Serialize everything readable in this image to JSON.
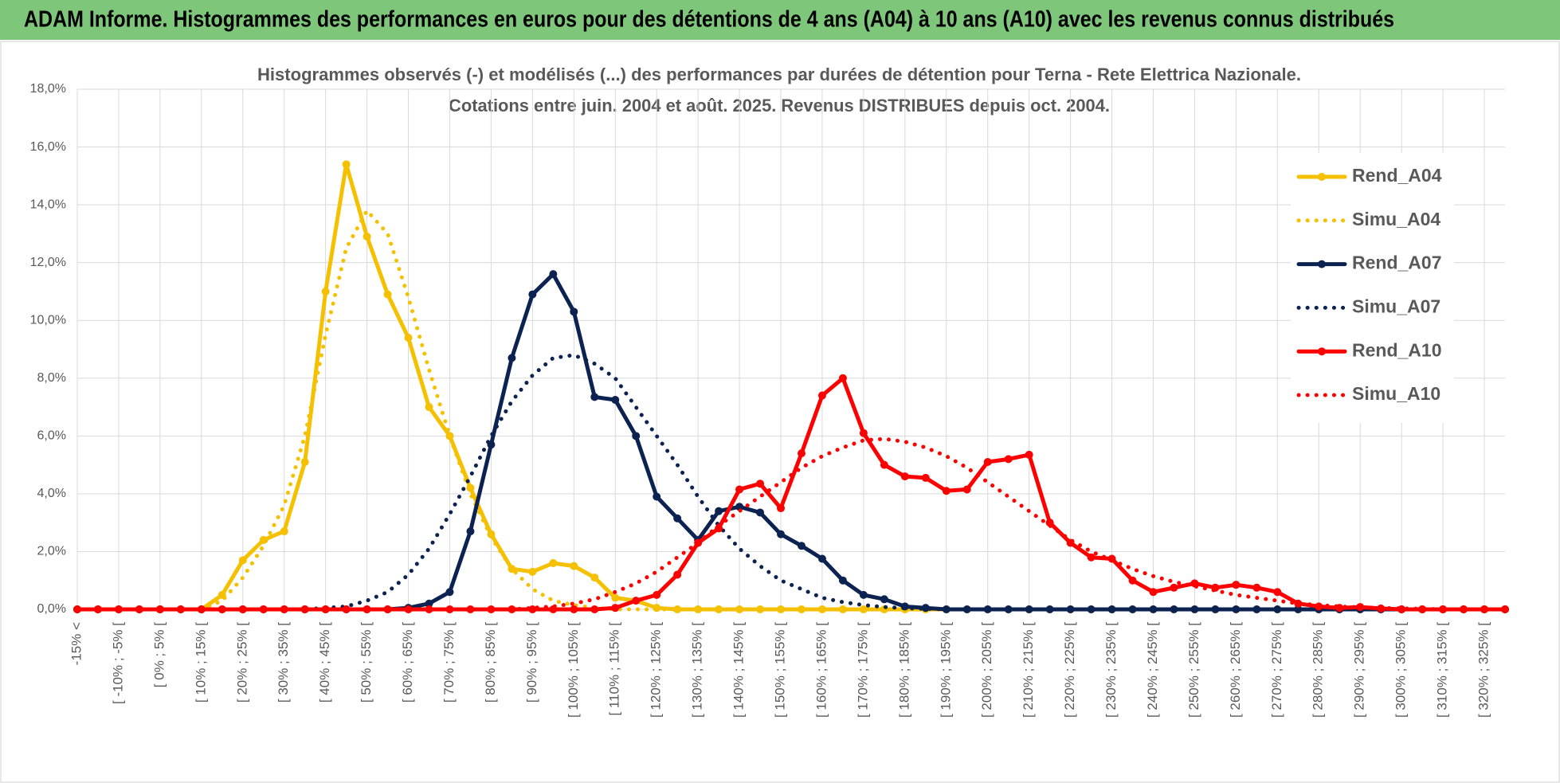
{
  "header": {
    "title": "ADAM Informe. Histogrammes des performances en euros pour des détentions de 4 ans (A04) à 10 ans (A10) avec les revenus connus distribués"
  },
  "chart_data": {
    "type": "line",
    "title": [
      "Histogrammes observés (-) et modélisés (...) des performances par durées de détention pour Terna - Rete Elettrica Nazionale.",
      "Cotations entre juin. 2004 et août. 2025. Revenus DISTRIBUES depuis oct. 2004."
    ],
    "categories": [
      "-15% <",
      null,
      "[ -10% ; -5% [",
      null,
      "[ 0% ; 5% [",
      null,
      "[ 10% ; 15% [",
      null,
      "[ 20% ; 25% [",
      null,
      "[ 30% ; 35% [",
      null,
      "[ 40% ; 45% [",
      null,
      "[ 50% ; 55% [",
      null,
      "[ 60% ; 65% [",
      null,
      "[ 70% ; 75% [",
      null,
      "[ 80% ; 85% [",
      null,
      "[ 90% ; 95% [",
      null,
      "[ 100% ; 105% [",
      null,
      "[ 110% ; 115% [",
      null,
      "[ 120% ; 125% [",
      null,
      "[ 130% ; 135% [",
      null,
      "[ 140% ; 145% [",
      null,
      "[ 150% ; 155% [",
      null,
      "[ 160% ; 165% [",
      null,
      "[ 170% ; 175% [",
      null,
      "[ 180% ; 185% [",
      null,
      "[ 190% ; 195% [",
      null,
      "[ 200% ; 205% [",
      null,
      "[ 210% ; 215% [",
      null,
      "[ 220% ; 225% [",
      null,
      "[ 230% ; 235% [",
      null,
      "[ 240% ; 245% [",
      null,
      "[ 250% ; 255% [",
      null,
      "[ 260% ; 265% [",
      null,
      "[ 270% ; 275% [",
      null,
      "[ 280% ; 285% [",
      null,
      "[ 290% ; 295% [",
      null,
      "[ 300% ; 305% [",
      null,
      "[ 310% ; 315% [",
      null,
      "[ 320% ; 325% [",
      null
    ],
    "series": [
      {
        "name": "Rend_A04",
        "color": "#f5c000",
        "dotted": false,
        "markers": true,
        "values": [
          0,
          0,
          0,
          0,
          0,
          0,
          0,
          0.5,
          1.7,
          2.4,
          2.7,
          5.1,
          11.0,
          15.4,
          12.9,
          10.9,
          9.4,
          7.0,
          6.0,
          4.2,
          2.6,
          1.4,
          1.3,
          1.6,
          1.5,
          1.1,
          0.4,
          0.3,
          0.05,
          0,
          0,
          0,
          0,
          0,
          0,
          0,
          0,
          0,
          0,
          0,
          0,
          0,
          0,
          0,
          0,
          0,
          0,
          0,
          0,
          0,
          0,
          0,
          0,
          0,
          0,
          0,
          0,
          0,
          0,
          0,
          0,
          0,
          0,
          0,
          0,
          0,
          0,
          0,
          0,
          0
        ]
      },
      {
        "name": "Simu_A04",
        "color": "#f5c000",
        "dotted": true,
        "markers": false,
        "values": [
          0,
          0,
          0,
          0,
          0,
          0,
          0,
          0.3,
          1.1,
          2.2,
          3.6,
          6.0,
          9.5,
          12.5,
          13.8,
          13.0,
          10.8,
          8.3,
          6.0,
          4.0,
          2.5,
          1.4,
          0.7,
          0.3,
          0.15,
          0.05,
          0,
          0,
          0,
          0,
          0,
          0,
          0,
          0,
          0,
          0,
          0,
          0,
          0,
          0,
          0,
          0,
          0,
          0,
          0,
          0,
          0,
          0,
          0,
          0,
          0,
          0,
          0,
          0,
          0,
          0,
          0,
          0,
          0,
          0,
          0,
          0,
          0,
          0,
          0,
          0,
          0,
          0,
          0,
          0
        ]
      },
      {
        "name": "Rend_A07",
        "color": "#0c2352",
        "dotted": false,
        "markers": true,
        "values": [
          0,
          0,
          0,
          0,
          0,
          0,
          0,
          0,
          0,
          0,
          0,
          0,
          0,
          0,
          0,
          0,
          0.05,
          0.2,
          0.6,
          2.7,
          5.7,
          8.7,
          10.9,
          11.6,
          10.3,
          7.35,
          7.25,
          6.0,
          3.9,
          3.15,
          2.4,
          3.4,
          3.55,
          3.35,
          2.6,
          2.2,
          1.75,
          1.0,
          0.5,
          0.35,
          0.1,
          0.05,
          0,
          0,
          0,
          0,
          0,
          0,
          0,
          0,
          0,
          0,
          0,
          0,
          0,
          0,
          0,
          0,
          0,
          0,
          0,
          0,
          0,
          0,
          0,
          0,
          0,
          0,
          0,
          0
        ]
      },
      {
        "name": "Simu_A07",
        "color": "#0c2352",
        "dotted": true,
        "markers": false,
        "values": [
          0,
          0,
          0,
          0,
          0,
          0,
          0,
          0,
          0,
          0,
          0,
          0,
          0.05,
          0.1,
          0.3,
          0.6,
          1.2,
          2.1,
          3.3,
          4.6,
          6.0,
          7.2,
          8.1,
          8.7,
          8.8,
          8.5,
          8.0,
          7.0,
          6.0,
          5.0,
          3.9,
          2.9,
          2.1,
          1.5,
          1.0,
          0.7,
          0.4,
          0.25,
          0.15,
          0.08,
          0.04,
          0.02,
          0,
          0,
          0,
          0,
          0,
          0,
          0,
          0,
          0,
          0,
          0,
          0,
          0,
          0,
          0,
          0,
          0,
          0,
          0,
          0,
          0,
          0,
          0,
          0,
          0,
          0,
          0,
          0
        ]
      },
      {
        "name": "Rend_A10",
        "color": "#ff0000",
        "dotted": false,
        "markers": true,
        "values": [
          0,
          0,
          0,
          0,
          0,
          0,
          0,
          0,
          0,
          0,
          0,
          0,
          0,
          0,
          0,
          0,
          0,
          0,
          0,
          0,
          0,
          0,
          0,
          0,
          0,
          0,
          0.05,
          0.3,
          0.5,
          1.2,
          2.3,
          2.8,
          4.15,
          4.35,
          3.5,
          5.4,
          7.4,
          8.0,
          6.1,
          5.0,
          4.6,
          4.55,
          4.1,
          4.15,
          5.1,
          5.2,
          5.35,
          3.0,
          2.3,
          1.8,
          1.75,
          1.0,
          0.6,
          0.75,
          0.9,
          0.75,
          0.85,
          0.75,
          0.6,
          0.2,
          0.1,
          0.05,
          0.08,
          0.03,
          0,
          0,
          0,
          0,
          0,
          0
        ]
      },
      {
        "name": "Simu_A10",
        "color": "#ff0000",
        "dotted": true,
        "markers": false,
        "values": [
          0,
          0,
          0,
          0,
          0,
          0,
          0,
          0,
          0,
          0,
          0,
          0,
          0,
          0,
          0,
          0,
          0,
          0,
          0,
          0,
          0,
          0,
          0.05,
          0.1,
          0.2,
          0.35,
          0.6,
          0.9,
          1.3,
          1.8,
          2.3,
          2.9,
          3.4,
          3.9,
          4.4,
          4.9,
          5.3,
          5.6,
          5.85,
          5.9,
          5.8,
          5.6,
          5.3,
          4.9,
          4.4,
          3.9,
          3.4,
          2.9,
          2.4,
          2.0,
          1.7,
          1.4,
          1.15,
          0.95,
          0.8,
          0.65,
          0.5,
          0.4,
          0.3,
          0.2,
          0.15,
          0.1,
          0.07,
          0.05,
          0.03,
          0.02,
          0,
          0,
          0,
          0
        ]
      }
    ],
    "ylim": [
      0,
      18
    ],
    "yticks": [
      {
        "value": 0,
        "label": "0,0%"
      },
      {
        "value": 2,
        "label": "2,0%"
      },
      {
        "value": 4,
        "label": "4,0%"
      },
      {
        "value": 6,
        "label": "6,0%"
      },
      {
        "value": 8,
        "label": "8,0%"
      },
      {
        "value": 10,
        "label": "10,0%"
      },
      {
        "value": 12,
        "label": "12,0%"
      },
      {
        "value": 14,
        "label": "14,0%"
      },
      {
        "value": 16,
        "label": "16,0%"
      },
      {
        "value": 18,
        "label": "18,0%"
      }
    ],
    "grid": true,
    "legend": "right"
  }
}
